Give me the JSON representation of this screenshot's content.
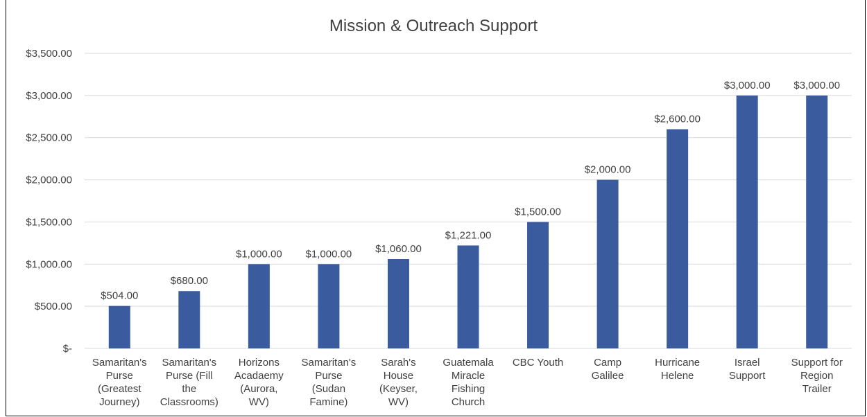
{
  "chart_data": {
    "type": "bar",
    "title": "Mission & Outreach Support",
    "xlabel": "",
    "ylabel": "",
    "categories": [
      [
        "Samaritan's",
        "Purse",
        "(Greatest",
        "Journey)"
      ],
      [
        "Samaritan's",
        "Purse (Fill",
        "the",
        "Classrooms)"
      ],
      [
        "Horizons",
        "Acadaemy",
        "(Aurora,",
        "WV)"
      ],
      [
        "Samaritan's",
        "Purse",
        "(Sudan",
        "Famine)"
      ],
      [
        "Sarah's",
        "House",
        "(Keyser,",
        "WV)"
      ],
      [
        "Guatemala",
        "Miracle",
        "Fishing",
        "Church"
      ],
      [
        "CBC Youth"
      ],
      [
        "Camp",
        "Galilee"
      ],
      [
        "Hurricane",
        "Helene"
      ],
      [
        "Israel",
        "Support"
      ],
      [
        "Support for",
        "Region",
        "Trailer"
      ]
    ],
    "values": [
      504,
      680,
      1000,
      1000,
      1060,
      1221,
      1500,
      2000,
      2600,
      3000,
      3000
    ],
    "data_labels": [
      "$504.00",
      "$680.00",
      "$1,000.00",
      "$1,000.00",
      "$1,060.00",
      "$1,221.00",
      "$1,500.00",
      "$2,000.00",
      "$2,600.00",
      "$3,000.00",
      "$3,000.00"
    ],
    "y_ticks": [
      0,
      500,
      1000,
      1500,
      2000,
      2500,
      3000,
      3500
    ],
    "y_tick_labels": [
      "$-",
      "$500.00",
      "$1,000.00",
      "$1,500.00",
      "$2,000.00",
      "$2,500.00",
      "$3,000.00",
      "$3,500.00"
    ],
    "ylim": [
      0,
      3500
    ],
    "grid": true,
    "legend": "none",
    "colors": {
      "bar": "#3A5B9E",
      "grid": "#D9D9D9",
      "text": "#404040"
    }
  }
}
